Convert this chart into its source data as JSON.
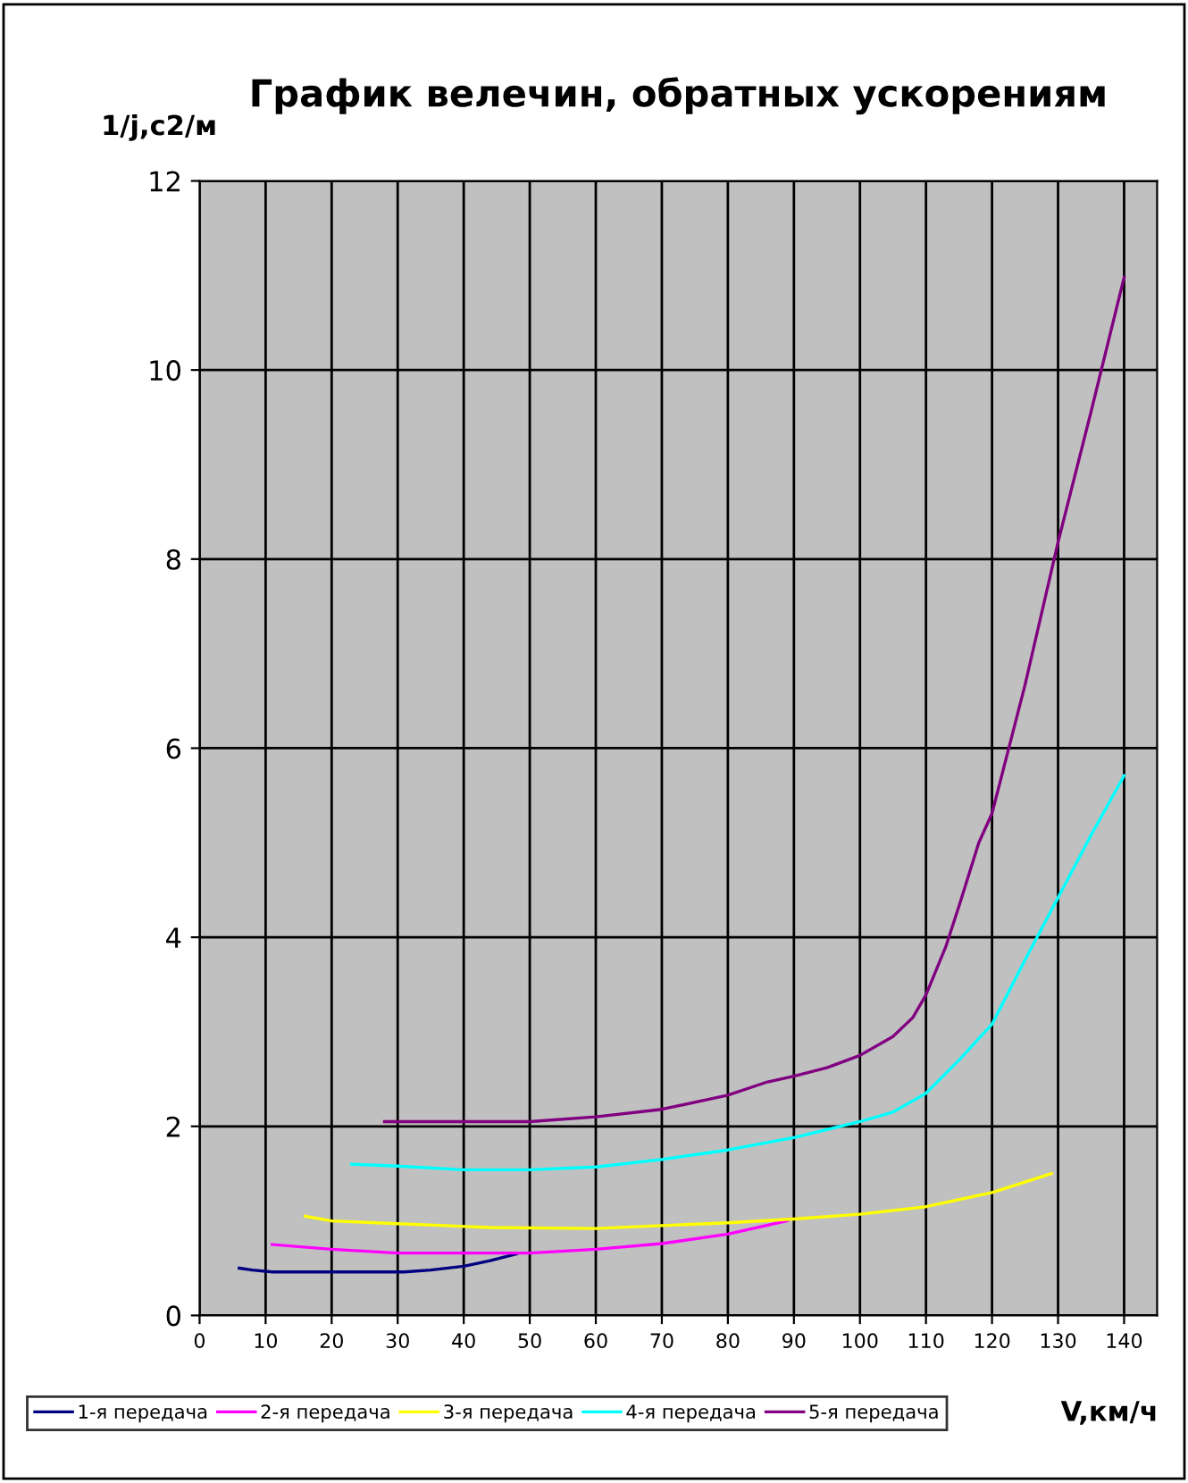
{
  "chart_data": {
    "type": "line",
    "title": "График велечин, обратных ускорениям",
    "xlabel": "V,км/ч",
    "ylabel": "1/j,c2/м",
    "xlim": [
      0,
      145
    ],
    "xticks": [
      0,
      10,
      20,
      30,
      40,
      50,
      60,
      70,
      80,
      90,
      100,
      110,
      120,
      130,
      140
    ],
    "ylim": [
      0,
      12
    ],
    "yticks": [
      0,
      2,
      4,
      6,
      8,
      10,
      12
    ],
    "grid": true,
    "legend": "bottom",
    "marker": "none",
    "line_style": "solid",
    "series": [
      {
        "name": "1-я передача",
        "color": "#000080",
        "x": [
          6,
          8,
          11,
          20,
          31,
          35,
          40,
          44,
          48
        ],
        "values": [
          0.5,
          0.48,
          0.46,
          0.46,
          0.46,
          0.48,
          0.52,
          0.58,
          0.65
        ]
      },
      {
        "name": "2-я передача",
        "color": "#ff00ff",
        "x": [
          11,
          20,
          30,
          40,
          50,
          60,
          70,
          80,
          89
        ],
        "values": [
          0.75,
          0.7,
          0.66,
          0.66,
          0.66,
          0.7,
          0.76,
          0.86,
          1.0
        ]
      },
      {
        "name": "3-я передача",
        "color": "#ffff00",
        "x": [
          16,
          20,
          30,
          44,
          60,
          70,
          80,
          90,
          100,
          110,
          120,
          129
        ],
        "values": [
          1.05,
          1.0,
          0.97,
          0.93,
          0.92,
          0.95,
          0.98,
          1.02,
          1.07,
          1.15,
          1.3,
          1.5
        ]
      },
      {
        "name": "4-я передача",
        "color": "#00ffff",
        "x": [
          23,
          30,
          40,
          50,
          60,
          70,
          80,
          90,
          100,
          105,
          110,
          115,
          120,
          125,
          130,
          135,
          140
        ],
        "values": [
          1.6,
          1.58,
          1.54,
          1.54,
          1.57,
          1.65,
          1.75,
          1.88,
          2.05,
          2.15,
          2.35,
          2.7,
          3.08,
          3.76,
          4.42,
          5.08,
          5.71
        ]
      },
      {
        "name": "5-я передача",
        "color": "#800080",
        "x": [
          28,
          40,
          50,
          60,
          70,
          80,
          86,
          90,
          95,
          100,
          105,
          108,
          110,
          113,
          115,
          118,
          120,
          125,
          130,
          135,
          140
        ],
        "values": [
          2.05,
          2.05,
          2.05,
          2.1,
          2.18,
          2.33,
          2.47,
          2.53,
          2.62,
          2.75,
          2.95,
          3.15,
          3.39,
          3.9,
          4.33,
          5.0,
          5.31,
          6.67,
          8.18,
          9.56,
          10.98
        ]
      }
    ]
  }
}
